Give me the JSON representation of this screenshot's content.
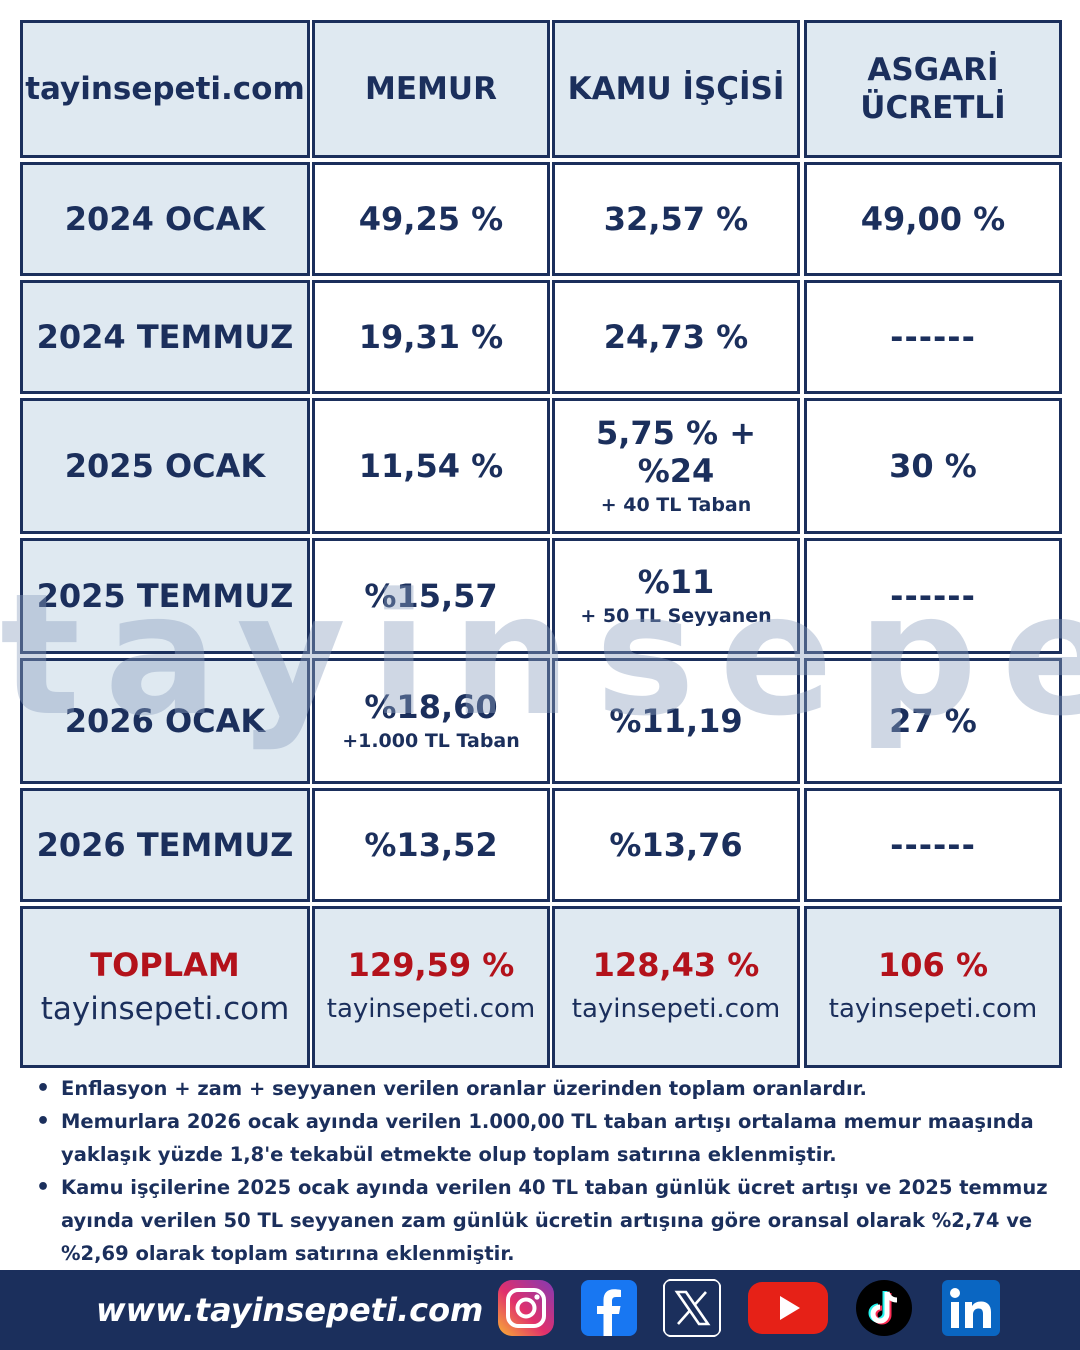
{
  "header": {
    "corner": "tayinsepeti.com",
    "columns": [
      "MEMUR",
      "KAMU İŞÇİSİ",
      "ASGARİ ÜCRETLİ"
    ]
  },
  "rows": [
    {
      "label": "2024 OCAK",
      "memur": "49,25 %",
      "memur_sub": "",
      "kamu": "32,57 %",
      "kamu_sub": "",
      "asgari": "49,00 %"
    },
    {
      "label": "2024 TEMMUZ",
      "memur": "19,31 %",
      "memur_sub": "",
      "kamu": "24,73 %",
      "kamu_sub": "",
      "asgari": "------"
    },
    {
      "label": "2025 OCAK",
      "memur": "11,54 %",
      "memur_sub": "",
      "kamu": "5,75 % + %24",
      "kamu_sub": "+  40 TL Taban",
      "asgari": "30 %"
    },
    {
      "label": "2025 TEMMUZ",
      "memur": "%15,57",
      "memur_sub": "",
      "kamu": "%11",
      "kamu_sub": "+ 50 TL Seyyanen",
      "asgari": "------"
    },
    {
      "label": "2026 OCAK",
      "memur": "%18,60",
      "memur_sub": "+1.000 TL Taban",
      "kamu": "%11,19",
      "kamu_sub": "",
      "asgari": "27 %"
    },
    {
      "label": "2026 TEMMUZ",
      "memur": "%13,52",
      "memur_sub": "",
      "kamu": "%13,76",
      "kamu_sub": "",
      "asgari": "------"
    }
  ],
  "total": {
    "label": "TOPLAM",
    "memur": "129,59 %",
    "kamu": "128,43 %",
    "asgari": "106 %",
    "site": "tayinsepeti.com"
  },
  "watermark": "tayinsepeti",
  "notes": [
    "Enflasyon + zam + seyyanen verilen oranlar üzerinden toplam oranlardır.",
    "Memurlara 2026 ocak ayında verilen 1.000,00 TL taban artışı ortalama memur maaşında yaklaşık yüzde 1,8'e tekabül etmekte olup toplam satırına  eklenmiştir.",
    "Kamu işçilerine 2025 ocak ayında verilen 40 TL taban günlük ücret artışı ve 2025 temmuz ayında verilen 50 TL seyyanen zam günlük ücretin artışına göre oransal olarak %2,74 ve %2,69 olarak toplam satırına eklenmiştir."
  ],
  "footer": {
    "url": "www.tayinsepeti.com",
    "icons": [
      "instagram-icon",
      "facebook-icon",
      "x-icon",
      "youtube-icon",
      "tiktok-icon",
      "linkedin-icon"
    ]
  },
  "colors": {
    "navy": "#1b2f5c",
    "header_fill": "#dfe9f1",
    "total_red": "#b3121b"
  }
}
